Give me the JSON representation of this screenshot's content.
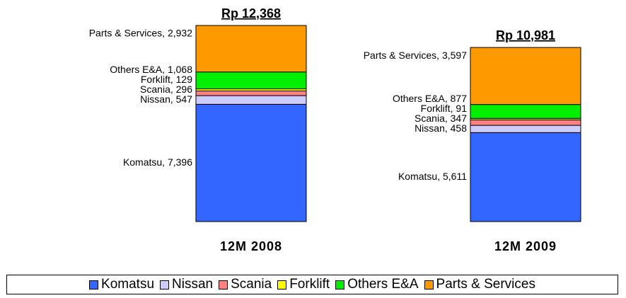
{
  "chart_data": {
    "type": "stacked_bar",
    "categories": [
      "12M 2008",
      "12M 2009"
    ],
    "total_labels": [
      "Rp 12,368",
      "Rp 10,981"
    ],
    "series": [
      {
        "name": "Komatsu",
        "color": "#3366ff",
        "values": [
          7396,
          5611
        ],
        "value_labels": [
          "Komatsu, 7,396",
          "Komatsu, 5,611"
        ]
      },
      {
        "name": "Nissan",
        "color": "#ccccff",
        "values": [
          547,
          458
        ],
        "value_labels": [
          "Nissan, 547",
          "Nissan, 458"
        ]
      },
      {
        "name": "Scania",
        "color": "#ff8080",
        "values": [
          296,
          347
        ],
        "value_labels": [
          "Scania, 296",
          "Scania, 347"
        ]
      },
      {
        "name": "Forklift",
        "color": "#ffff00",
        "values": [
          129,
          91
        ],
        "value_labels": [
          "Forklift, 129",
          "Forklift, 91"
        ]
      },
      {
        "name": "Others E&A",
        "color": "#00ee00",
        "values": [
          1068,
          877
        ],
        "value_labels": [
          "Others E&A, 1,068",
          "Others E&A, 877"
        ]
      },
      {
        "name": "Parts & Services",
        "color": "#ff9900",
        "values": [
          2932,
          3597
        ],
        "value_labels": [
          "Parts & Services, 2,932",
          "Parts & Services, 3,597"
        ]
      }
    ]
  }
}
